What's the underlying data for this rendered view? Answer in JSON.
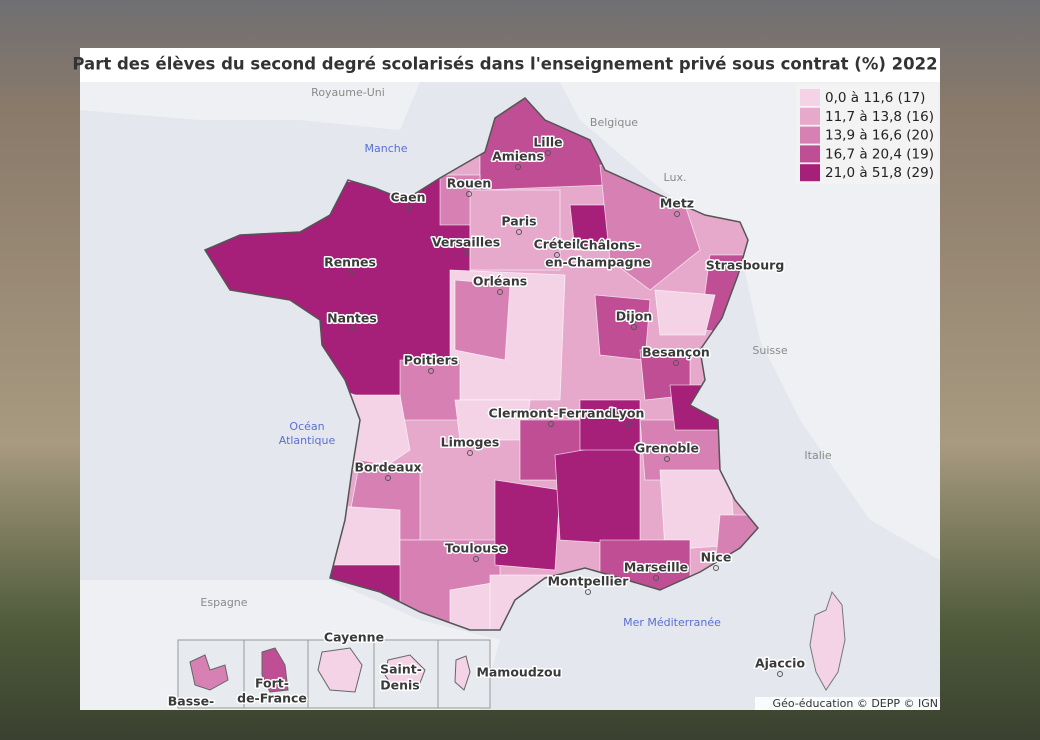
{
  "header": {
    "title": "Part des élèves du second degré scolarisés dans l'enseignement privé sous contrat (%)  2022"
  },
  "legend": {
    "items": [
      {
        "label": "0,0 à 11,6 (17)",
        "color": "#f3d3e5"
      },
      {
        "label": "11,7 à 13,8 (16)",
        "color": "#e6a9cc"
      },
      {
        "label": "13,9 à 16,6 (20)",
        "color": "#d680b3"
      },
      {
        "label": "16,7 à 20,4 (19)",
        "color": "#bf4e95"
      },
      {
        "label": "21,0 à 51,8 (29)",
        "color": "#a61f79"
      }
    ]
  },
  "map": {
    "labels": [
      "Royaume-Uni",
      "Belgique",
      "Lux.",
      "Manche",
      "Lille",
      "Amiens",
      "Rouen",
      "Caen",
      "Metz",
      "Paris",
      "Versailles",
      "Créteil",
      "Châlons-",
      "en-Champagne",
      "Strasbourg",
      "Rennes",
      "Orléans",
      "Nantes",
      "Dijon",
      "Besançon",
      "Suisse",
      "Poitiers",
      "Océan",
      "Atlantique",
      "Clermont-Ferrand",
      "Lyon",
      "Limoges",
      "Grenoble",
      "Italie",
      "Bordeaux",
      "Toulouse",
      "Nice",
      "Marseille",
      "Montpellier",
      "Espagne",
      "Mer Méditerranée",
      "Cayenne",
      "Fort-",
      "de-France",
      "Saint-",
      "Denis",
      "Mamoudzou",
      "Basse-",
      "Ajaccio"
    ]
  },
  "credit": "Géo-éducation © DEPP © IGN"
}
